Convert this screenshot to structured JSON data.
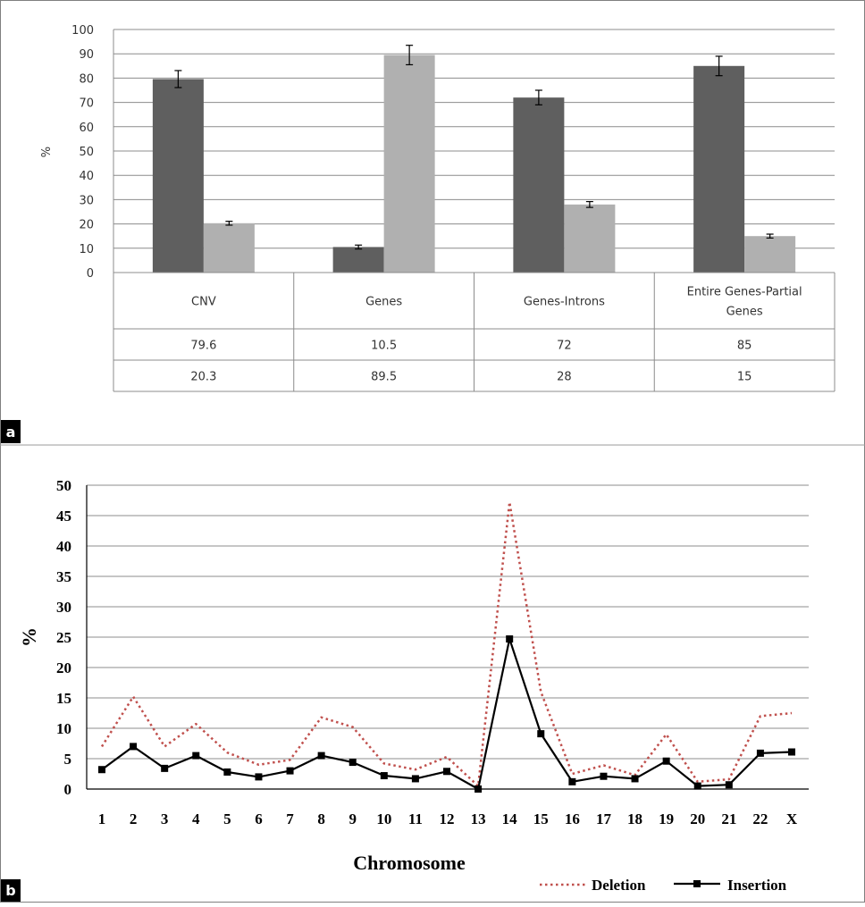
{
  "chart_data": [
    {
      "panel_label": "a",
      "type": "bar",
      "title": "",
      "xlabel": "",
      "ylabel": "%",
      "ylim": [
        0,
        100
      ],
      "yticks": [
        0,
        10,
        20,
        30,
        40,
        50,
        60,
        70,
        80,
        90,
        100
      ],
      "grid": true,
      "categories": [
        "CNV",
        "Genes",
        "Genes-Introns",
        "Entire Genes-Partial Genes"
      ],
      "series": [
        {
          "name": "",
          "color": "#5f5f5f",
          "values": [
            79.6,
            10.5,
            72,
            85
          ],
          "error": [
            3.5,
            0.8,
            3,
            4
          ]
        },
        {
          "name": "",
          "color": "#b0b0b0",
          "values": [
            20.3,
            89.5,
            28,
            15
          ],
          "error": [
            0.8,
            4,
            1.2,
            0.8
          ]
        }
      ],
      "table": {
        "rows": [
          [
            "79.6",
            "10.5",
            "72",
            "85"
          ],
          [
            "20.3",
            "89.5",
            "28",
            "15"
          ]
        ]
      }
    },
    {
      "panel_label": "b",
      "type": "line",
      "title": "",
      "xlabel": "Chromosome",
      "ylabel": "%",
      "ylim": [
        0,
        50
      ],
      "yticks": [
        0,
        5,
        10,
        15,
        20,
        25,
        30,
        35,
        40,
        45,
        50
      ],
      "grid": true,
      "legend_position": "bottom-right",
      "x": [
        "1",
        "2",
        "3",
        "4",
        "5",
        "6",
        "7",
        "8",
        "9",
        "10",
        "11",
        "12",
        "13",
        "14",
        "15",
        "16",
        "17",
        "18",
        "19",
        "20",
        "21",
        "22",
        "X"
      ],
      "series": [
        {
          "name": "Deletion",
          "color": "#c0504d",
          "style": "dotted",
          "values": [
            7,
            15.2,
            7,
            10.7,
            6,
            4,
            4.8,
            11.8,
            10.2,
            4.2,
            3.2,
            5.3,
            0.5,
            47.2,
            16,
            2.5,
            3.9,
            2.3,
            9,
            1.2,
            1.6,
            12,
            12.5
          ]
        },
        {
          "name": "Insertion",
          "color": "#000000",
          "style": "solid-square",
          "values": [
            3.2,
            7,
            3.4,
            5.5,
            2.8,
            2,
            3,
            5.5,
            4.4,
            2.2,
            1.7,
            2.9,
            0,
            24.7,
            9.1,
            1.2,
            2.1,
            1.7,
            4.6,
            0.5,
            0.7,
            5.9,
            6.1
          ]
        }
      ]
    }
  ]
}
